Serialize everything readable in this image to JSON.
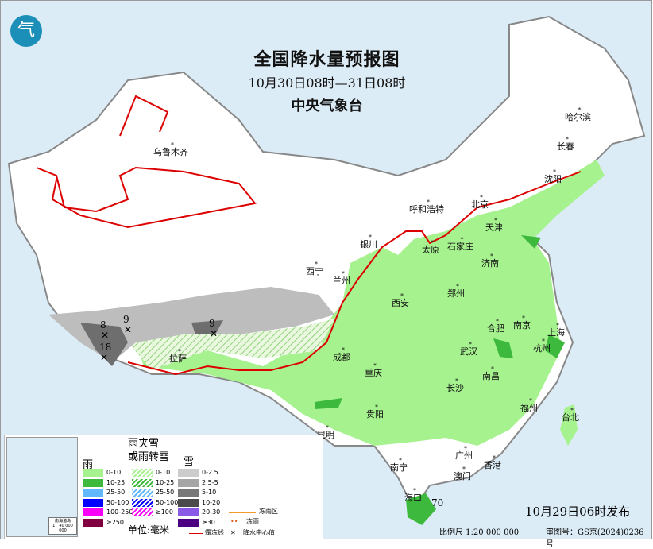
{
  "title": "全国降水量预报图",
  "period": "10月30日08时—31日08时",
  "agency": "中央气象台",
  "issued": "10月29日06时发布",
  "scale": "比例尺 1:20 000 000",
  "map_approval": "审图号：GS京(2024)0236号",
  "logo_text": "气",
  "cities": [
    "哈尔滨",
    "长春",
    "沈阳",
    "乌鲁木齐",
    "呼和浩特",
    "北京",
    "天津",
    "石家庄",
    "太原",
    "济南",
    "银川",
    "西宁",
    "兰州",
    "郑州",
    "西安",
    "合肥",
    "南京",
    "上海",
    "杭州",
    "成都",
    "武汉",
    "拉萨",
    "重庆",
    "南昌",
    "长沙",
    "福州",
    "台北",
    "贵阳",
    "昆明",
    "南宁",
    "广州",
    "澳门",
    "香港",
    "海口"
  ],
  "precip_centers": [
    "8",
    "9",
    "9",
    "18",
    "70"
  ],
  "legend": {
    "rain_title": "雨",
    "mixed_title": "雨夹雪\n或雨转雪",
    "snow_title": "雪",
    "unit": "单位:毫米",
    "rain": [
      {
        "label": "0-10",
        "color": "#a6f28f"
      },
      {
        "label": "10-25",
        "color": "#3dba3d"
      },
      {
        "label": "25-50",
        "color": "#61b8ff"
      },
      {
        "label": "50-100",
        "color": "#0000fe"
      },
      {
        "label": "100-250",
        "color": "#fa00fa"
      },
      {
        "label": "≥250",
        "color": "#800040"
      }
    ],
    "mixed": [
      {
        "label": "0-10",
        "color": "#a6f28f"
      },
      {
        "label": "10-25",
        "color": "#3dba3d"
      },
      {
        "label": "25-50",
        "color": "#61b8ff"
      },
      {
        "label": "50-100",
        "color": "#0000fe"
      },
      {
        "label": "≥100",
        "color": "#fa00fa"
      }
    ],
    "snow": [
      {
        "label": "0-2.5",
        "color": "#cccccc"
      },
      {
        "label": "2.5-5",
        "color": "#a6a6a6"
      },
      {
        "label": "5-10",
        "color": "#787878"
      },
      {
        "label": "10-20",
        "color": "#4a4a4a"
      },
      {
        "label": "20-30",
        "color": "#8a5ae6"
      },
      {
        "label": "≥30",
        "color": "#4b0082"
      }
    ],
    "freezing_rain_area": "冻雨区",
    "freezing_rain": "冻雨",
    "frost_line": "霜冻线",
    "precip_center": "降水中心值",
    "inset_title": "南海诸岛",
    "inset_scale": "1：40 000 000"
  }
}
